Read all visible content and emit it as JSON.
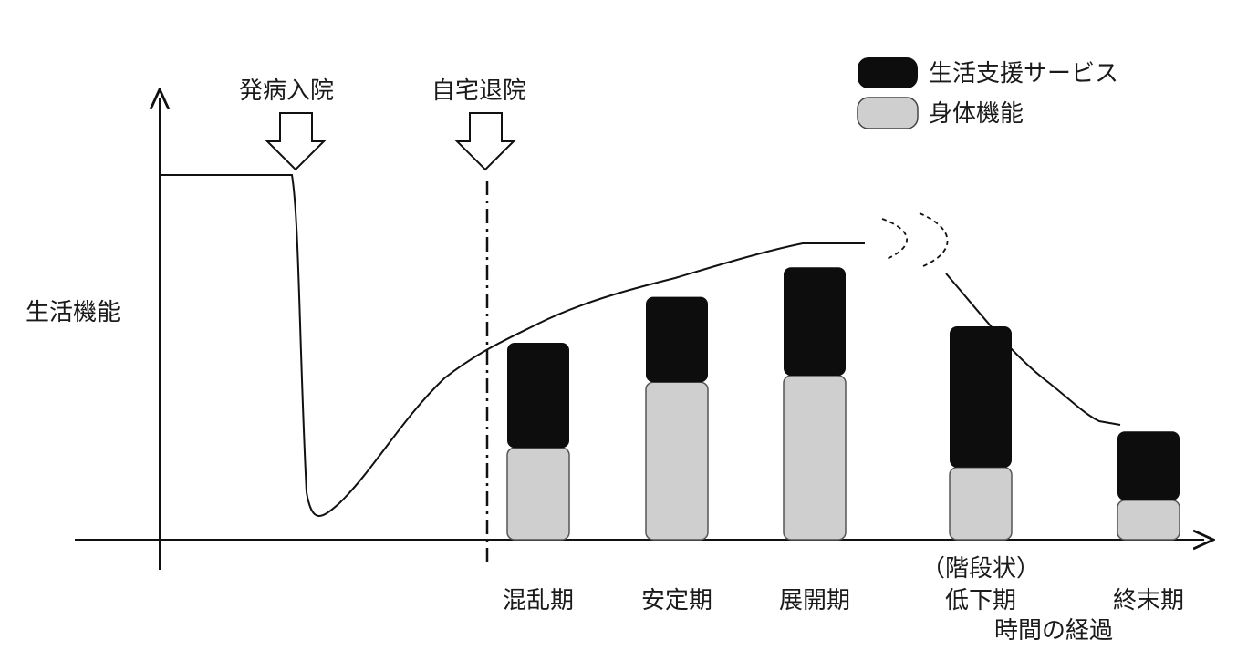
{
  "chart_data": {
    "type": "bar",
    "ylabel": "生活機能",
    "xlabel": "時間の経過",
    "categories": [
      "混乱期",
      "安定期",
      "展開期",
      "低下期",
      "終末期"
    ],
    "category_note": {
      "index": 3,
      "text": "（階段状）"
    },
    "stacked": true,
    "series": [
      {
        "name": "身体機能",
        "color": "#cfcfcf",
        "values": [
          28,
          48,
          50,
          22,
          12
        ]
      },
      {
        "name": "生活支援サービス",
        "color": "#0d0d0d",
        "values": [
          32,
          26,
          33,
          43,
          21
        ]
      }
    ],
    "events": [
      {
        "label": "発病入院",
        "line": false
      },
      {
        "label": "自宅退院",
        "line": true
      }
    ],
    "legend": "top-right",
    "grid": false,
    "ylim": [
      0,
      110
    ]
  }
}
